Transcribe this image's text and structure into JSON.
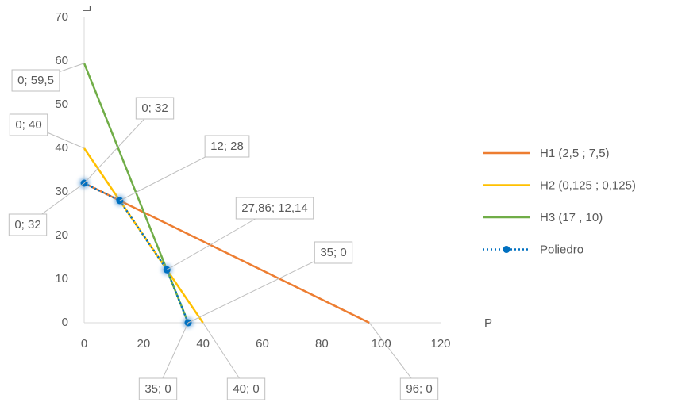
{
  "chart_data": {
    "type": "line",
    "x_label": "P",
    "y_label": "L",
    "xlim": [
      0,
      120
    ],
    "ylim": [
      0,
      70
    ],
    "xticks": [
      0,
      20,
      40,
      60,
      80,
      100,
      120
    ],
    "yticks": [
      0,
      10,
      20,
      30,
      40,
      50,
      60,
      70
    ],
    "grid": false,
    "legend": "right",
    "series": [
      {
        "name": "H1 (2,5 ; 7,5)",
        "color": "#ed7d31",
        "style": "solid",
        "markers": false,
        "x": [
          0,
          96
        ],
        "values": [
          32,
          0
        ],
        "value_labels": [
          "0; 32",
          "96; 0"
        ]
      },
      {
        "name": "H2 (0,125 ; 0,125)",
        "color": "#ffc000",
        "style": "solid",
        "markers": false,
        "x": [
          0,
          40
        ],
        "values": [
          40,
          0
        ],
        "value_labels": [
          "0; 40",
          "40; 0"
        ]
      },
      {
        "name": "H3 (17 , 10)",
        "color": "#70ad47",
        "style": "solid",
        "markers": false,
        "x": [
          0,
          35
        ],
        "values": [
          59.5,
          0
        ],
        "value_labels": [
          "0; 59,5",
          "35; 0"
        ]
      },
      {
        "name": "Poliedro",
        "color": "#0070c0",
        "style": "dotted",
        "markers": true,
        "x": [
          0,
          12,
          27.86,
          35
        ],
        "values": [
          32,
          28,
          12.14,
          0
        ],
        "value_labels": [
          "0; 32",
          "12; 28",
          "27,86; 12,14",
          "35; 0"
        ]
      }
    ]
  }
}
